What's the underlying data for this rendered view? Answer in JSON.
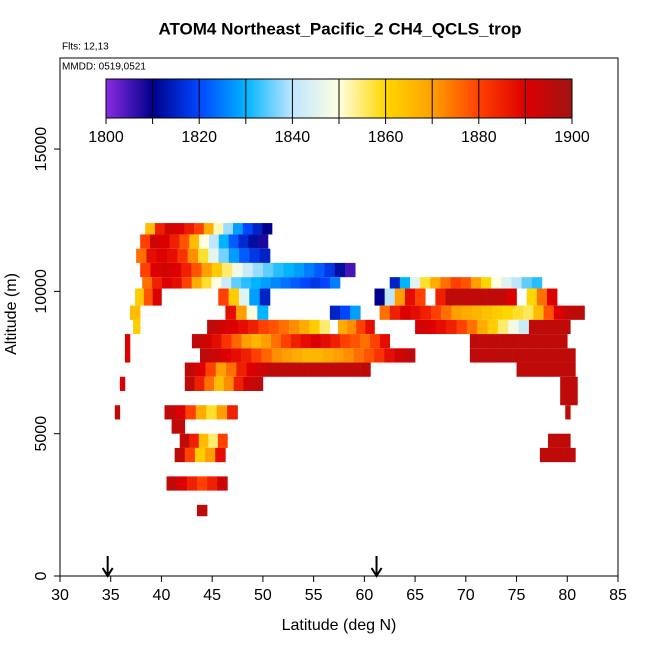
{
  "chart_data": {
    "type": "curtain",
    "title": "ATOM4 Northeast_Pacific_2 CH4_QCLS_trop",
    "flights": "Flts: 12,13",
    "dates": "MMDD: 0519,0521",
    "x_label": "Latitude (deg N)",
    "y_label": "Altitude (m)",
    "xlim": [
      30,
      85
    ],
    "xticks": [
      30,
      35,
      40,
      45,
      50,
      55,
      60,
      65,
      70,
      75,
      80,
      85
    ],
    "ylim": [
      0,
      18200
    ],
    "yticks": [
      0,
      5000,
      10000,
      15000
    ],
    "colorbar": {
      "range": [
        1800,
        1900
      ],
      "ticks": [
        1800,
        1820,
        1840,
        1860,
        1880,
        1900
      ],
      "stops": [
        1800,
        1810,
        1820,
        1830,
        1840,
        1850,
        1860,
        1870,
        1880,
        1890,
        1900
      ],
      "colors": [
        "#8a2be2",
        "#00008b",
        "#0046ff",
        "#00b4ff",
        "#bfe6ff",
        "#ffffe0",
        "#ffd700",
        "#ffa000",
        "#ff4000",
        "#dd0000",
        "#a01414"
      ]
    },
    "arrows": [
      34.7,
      61.2
    ],
    "strips": [
      {
        "alt": [
          12000,
          12400
        ],
        "lat": [
          38.4,
          50.9
        ],
        "values": [
          1865,
          1885,
          1892,
          1890,
          1886,
          1880,
          1868,
          1852,
          1838,
          1828,
          1820,
          1815,
          1810
        ]
      },
      {
        "alt": [
          11500,
          12000
        ],
        "lat": [
          37.9,
          50.5
        ],
        "values": [
          1880,
          1892,
          1890,
          1885,
          1878,
          1865,
          1850,
          1840,
          1830,
          1822,
          1816,
          1812,
          1808
        ]
      },
      {
        "alt": [
          11000,
          11500
        ],
        "lat": [
          37.5,
          50.7
        ],
        "values": [
          1875,
          1888,
          1890,
          1888,
          1882,
          1872,
          1858,
          1846,
          1836,
          1828,
          1822,
          1818,
          1815
        ]
      },
      {
        "alt": [
          10500,
          11000
        ],
        "lat": [
          37.9,
          59.1
        ],
        "values": [
          1880,
          1890,
          1892,
          1890,
          1885,
          1878,
          1870,
          1862,
          1855,
          1848,
          1842,
          1838,
          1835,
          1832,
          1830,
          1828,
          1825,
          1822,
          1818,
          1812,
          1805
        ]
      },
      {
        "alt": [
          10100,
          10500
        ],
        "lat": [
          38.1,
          57.6
        ],
        "values": [
          1875,
          1885,
          1890,
          1888,
          1880,
          1868,
          1858,
          1850,
          1842,
          1835,
          1832,
          1830,
          1828,
          1826,
          1824,
          1822,
          1820,
          1818,
          1820,
          1825
        ]
      },
      {
        "alt": [
          10100,
          10500
        ],
        "lat": [
          62.5,
          77.5
        ],
        "values": [
          1815,
          1830,
          1845,
          1858,
          1868,
          1875,
          1880,
          1878,
          1870,
          1860,
          1850,
          1845,
          1840,
          1835,
          1832
        ]
      },
      {
        "alt": [
          9500,
          10100
        ],
        "lat": [
          37.4,
          40
        ],
        "values": [
          1862,
          1878,
          1890
        ]
      },
      {
        "alt": [
          9500,
          10100
        ],
        "lat": [
          45.6,
          50.7
        ],
        "values": [
          1880,
          1862,
          1845,
          1828,
          1815
        ]
      },
      {
        "alt": [
          9500,
          10100
        ],
        "lat": [
          61,
          81
        ],
        "values": [
          1810,
          1840,
          1870,
          1888,
          1880,
          null,
          1885,
          1895,
          1895,
          1895,
          1895,
          1895,
          1895,
          1890,
          null,
          1860,
          1875,
          1890,
          null,
          null
        ]
      },
      {
        "alt": [
          9000,
          9500
        ],
        "lat": [
          36.9,
          37.9
        ],
        "values": [
          1865
        ]
      },
      {
        "alt": [
          9000,
          9500
        ],
        "lat": [
          46.3,
          50.5
        ],
        "values": [
          1888,
          1870,
          1850,
          1830
        ]
      },
      {
        "alt": [
          9000,
          9500
        ],
        "lat": [
          56.6,
          59.6
        ],
        "values": [
          1815,
          1820,
          1828
        ]
      },
      {
        "alt": [
          9000,
          9500
        ],
        "lat": [
          61.5,
          81.7
        ],
        "values": [
          1875,
          1885,
          1890,
          1888,
          1885,
          1880,
          1875,
          1870,
          1868,
          1866,
          1864,
          1862,
          1860,
          1858,
          1856,
          1865,
          1878,
          1890,
          1895,
          1895
        ]
      },
      {
        "alt": [
          8500,
          9000
        ],
        "lat": [
          37.2,
          37.9
        ],
        "values": [
          1862
        ]
      },
      {
        "alt": [
          8500,
          9000
        ],
        "lat": [
          44.5,
          56.6
        ],
        "values": [
          1895,
          1892,
          1890,
          1888,
          1885,
          1880,
          1878,
          1875,
          1872,
          1868,
          1862,
          1855
        ]
      },
      {
        "alt": [
          8500,
          9000
        ],
        "lat": [
          57.4,
          61
        ],
        "values": [
          1868,
          1872,
          1880,
          1888
        ]
      },
      {
        "alt": [
          8500,
          9000
        ],
        "lat": [
          65,
          80.3
        ],
        "values": [
          1892,
          1890,
          1888,
          1885,
          1880,
          1875,
          1868,
          1862,
          1855,
          1848,
          1842,
          1895,
          1895,
          1895,
          1895
        ]
      },
      {
        "alt": [
          7500,
          8500
        ],
        "lat": [
          36.4,
          36.9
        ],
        "values": [
          1890
        ]
      },
      {
        "alt": [
          8000,
          8500
        ],
        "lat": [
          43,
          62.5
        ],
        "values": [
          1895,
          1892,
          1888,
          1882,
          1876,
          1870,
          1866,
          1870,
          1875,
          1880,
          1885,
          1888,
          1890,
          1888,
          1885,
          1880,
          1878,
          1875,
          1880,
          1888
        ]
      },
      {
        "alt": [
          8000,
          8500
        ],
        "lat": [
          70.4,
          80
        ],
        "values": [
          1895,
          1895,
          1895,
          1895,
          1895,
          1895,
          1895,
          1895,
          1895,
          1895
        ]
      },
      {
        "alt": [
          7500,
          8000
        ],
        "lat": [
          43.8,
          65
        ],
        "values": [
          1895,
          1893,
          1890,
          1888,
          1885,
          1880,
          1876,
          1872,
          1870,
          1868,
          1866,
          1866,
          1868,
          1870,
          1872,
          1875,
          1878,
          1882,
          1888,
          1892,
          1895
        ]
      },
      {
        "alt": [
          7500,
          8000
        ],
        "lat": [
          70.4,
          80.8
        ],
        "values": [
          1895,
          1895,
          1895,
          1895,
          1895,
          1895,
          1895,
          1895,
          1895,
          1895
        ]
      },
      {
        "alt": [
          7000,
          7500
        ],
        "lat": [
          42.3,
          60.6
        ],
        "values": [
          1895,
          1890,
          1880,
          1870,
          1875,
          1885,
          1890,
          1893,
          1895,
          1895,
          1895,
          1895,
          1895,
          1895,
          1895,
          1895,
          1895,
          1895
        ]
      },
      {
        "alt": [
          7000,
          7500
        ],
        "lat": [
          75,
          80.8
        ],
        "values": [
          1895,
          1895,
          1895,
          1895,
          1895,
          1895
        ]
      },
      {
        "alt": [
          6500,
          7000
        ],
        "lat": [
          35.9,
          36.4
        ],
        "values": [
          1890
        ]
      },
      {
        "alt": [
          6500,
          7000
        ],
        "lat": [
          42.3,
          50
        ],
        "values": [
          1895,
          1885,
          1875,
          1865,
          1872,
          1885,
          1892,
          1895
        ]
      },
      {
        "alt": [
          6000,
          7000
        ],
        "lat": [
          79.3,
          81
        ],
        "values": [
          1895,
          1895
        ]
      },
      {
        "alt": [
          5500,
          6000
        ],
        "lat": [
          35.4,
          35.9
        ],
        "values": [
          1895
        ]
      },
      {
        "alt": [
          5500,
          6000
        ],
        "lat": [
          40.3,
          47.5
        ],
        "values": [
          1895,
          1890,
          1880,
          1868,
          1858,
          1870,
          1885
        ]
      },
      {
        "alt": [
          5500,
          6000
        ],
        "lat": [
          79.8,
          80.3
        ],
        "values": [
          1895
        ]
      },
      {
        "alt": [
          5000,
          5500
        ],
        "lat": [
          41,
          42.3
        ],
        "values": [
          1895
        ]
      },
      {
        "alt": [
          4500,
          5000
        ],
        "lat": [
          41.8,
          46.5
        ],
        "values": [
          1895,
          1885,
          1865,
          1855,
          1880
        ]
      },
      {
        "alt": [
          4500,
          5000
        ],
        "lat": [
          78.1,
          80.3
        ],
        "values": [
          1895,
          1895
        ]
      },
      {
        "alt": [
          4000,
          4500
        ],
        "lat": [
          41.3,
          46.3
        ],
        "values": [
          1895,
          1880,
          1862,
          1870,
          1888
        ]
      },
      {
        "alt": [
          4000,
          4500
        ],
        "lat": [
          77.3,
          80.8
        ],
        "values": [
          1895,
          1895,
          1895
        ]
      },
      {
        "alt": [
          3000,
          3500
        ],
        "lat": [
          40.5,
          46.5
        ],
        "values": [
          1895,
          1890,
          1885,
          1880,
          1885,
          1893
        ]
      },
      {
        "alt": [
          2100,
          2500
        ],
        "lat": [
          43.5,
          44.5
        ],
        "values": [
          1895
        ]
      }
    ]
  }
}
